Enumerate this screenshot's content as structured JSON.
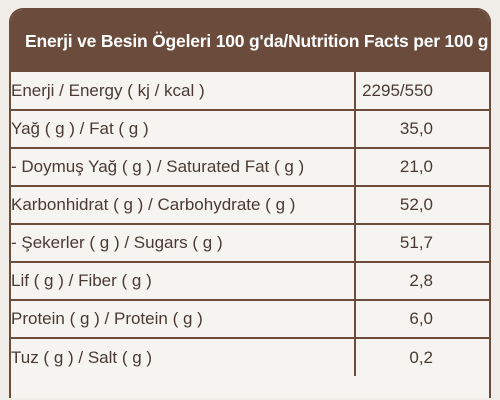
{
  "title": "Enerji ve Besin Ögeleri 100 g'da/Nutrition Facts per 100 g",
  "rows": [
    {
      "name": "Enerji / Energy ( kj / kcal )",
      "value": "2295/550"
    },
    {
      "name": "Yağ ( g ) / Fat ( g )",
      "value": "35,0"
    },
    {
      "name": "- Doymuş Yağ ( g ) / Saturated Fat ( g )",
      "value": "21,0"
    },
    {
      "name": "Karbonhidrat ( g ) / Carbohydrate ( g )",
      "value": "52,0"
    },
    {
      "name": "- Şekerler ( g ) / Sugars ( g )",
      "value": "51,7"
    },
    {
      "name": "Lif ( g ) / Fiber ( g )",
      "value": "2,8"
    },
    {
      "name": "Protein ( g ) / Protein ( g )",
      "value": "6,0"
    },
    {
      "name": "Tuz ( g ) / Salt ( g )",
      "value": "0,2"
    }
  ],
  "colors": {
    "brand": "#6b4b3c",
    "text": "#4a3a33",
    "background": "#f6f4f0"
  }
}
